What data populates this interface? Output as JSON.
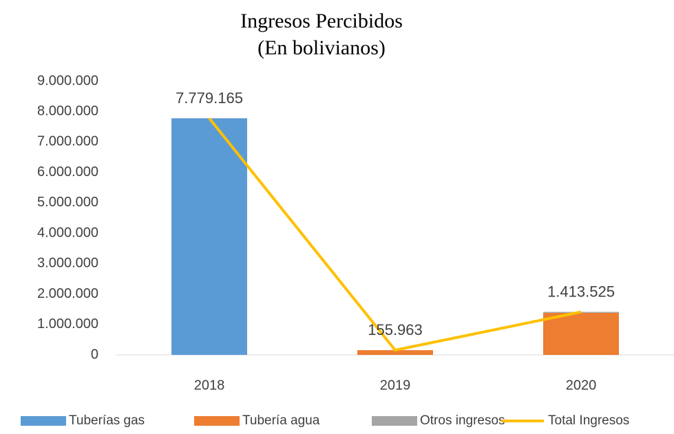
{
  "chart_data": {
    "type": "bar",
    "stacked": true,
    "title": "Ingresos Percibidos",
    "subtitle": "(En bolivianos)",
    "categories": [
      "2018",
      "2019",
      "2020"
    ],
    "series": [
      {
        "name": "Tuberías gas",
        "color": "#5b9bd5",
        "values": [
          7779165,
          0,
          0
        ]
      },
      {
        "name": "Tubería agua",
        "color": "#ed7d31",
        "values": [
          0,
          155963,
          1380000
        ]
      },
      {
        "name": "Otros ingresos",
        "color": "#a5a5a5",
        "values": [
          0,
          0,
          33525
        ]
      },
      {
        "name": "Total Ingresos",
        "type": "line",
        "color": "#ffc000",
        "values": [
          7779165,
          155963,
          1413525
        ],
        "value_labels": [
          "7.779.165",
          "155.963",
          "1.413.525"
        ]
      }
    ],
    "ylim": [
      0,
      9000000
    ],
    "yticks": [
      0,
      {
        "value": 1000000,
        "label": "1.000.000"
      },
      {
        "value": 2000000,
        "label": "2.000.000"
      },
      {
        "value": 3000000,
        "label": "3.000.000"
      },
      {
        "value": 4000000,
        "label": "4.000.000"
      },
      {
        "value": 5000000,
        "label": "5.000.000"
      },
      {
        "value": 6000000,
        "label": "6.000.000"
      },
      {
        "value": 7000000,
        "label": "7.000.000"
      },
      {
        "value": 8000000,
        "label": "8.000.000"
      },
      {
        "value": 9000000,
        "label": "9.000.000"
      }
    ],
    "legend": "bottom"
  }
}
